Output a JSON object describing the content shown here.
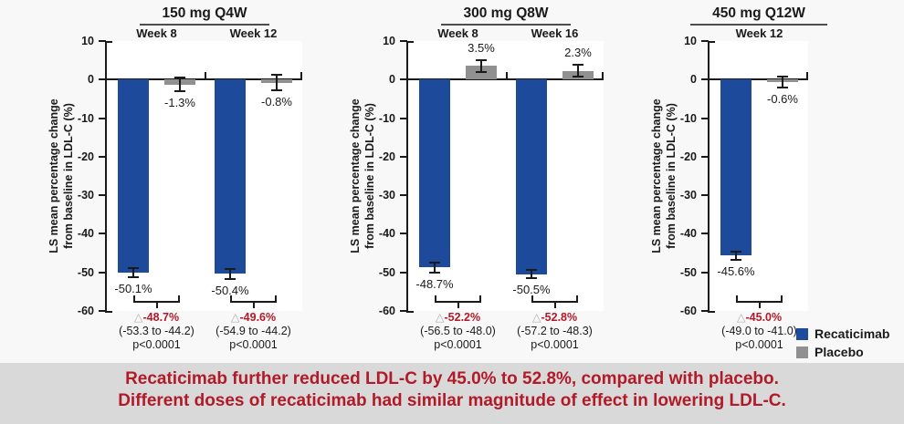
{
  "banner": {
    "line1": "Recaticimab further reduced LDL-C by 45.0% to 52.8%, compared with placebo.",
    "line2": "Different doses of recaticimab had similar magnitude of effect in lowering LDL-C."
  },
  "legend": {
    "position": "bottom-right",
    "items": [
      {
        "label": "Recaticimab",
        "color": "#1d4a9a"
      },
      {
        "label": "Placebo",
        "color": "#909090"
      }
    ]
  },
  "colors": {
    "recaticimab_bar": "#1d4a9a",
    "placebo_bar": "#909090",
    "axis": "#1a1a1a",
    "accent_red": "#b11a28",
    "triangle_gray": "#b0b0b0",
    "banner_bg": "#d9d9d9",
    "page_bg": "#f8f8f8"
  },
  "chart_data": {
    "type": "bar",
    "ylabel_line1": "LS mean percentage change",
    "ylabel_line2": "from baseline in LDL-C (%)",
    "ylim": [
      -60,
      10
    ],
    "ytick_step": 10,
    "grid": false,
    "delta_symbol": "△",
    "series_names": [
      "Recaticimab",
      "Placebo"
    ],
    "panels": [
      {
        "title": "150 mg Q4W",
        "groups": [
          {
            "week": "Week 8",
            "recaticimab": {
              "value": -50.1,
              "label": "-50.1%",
              "err": 1.5
            },
            "placebo": {
              "value": -1.3,
              "label": "-1.3%",
              "err": 2.0
            },
            "difference": {
              "delta": "-48.7%",
              "ci": "(-53.3 to -44.2)",
              "p": "p<0.0001"
            }
          },
          {
            "week": "Week 12",
            "recaticimab": {
              "value": -50.4,
              "label": "-50.4%",
              "err": 1.5
            },
            "placebo": {
              "value": -0.8,
              "label": "-0.8%",
              "err": 2.2
            },
            "difference": {
              "delta": "-49.6%",
              "ci": "(-54.9 to -44.2)",
              "p": "p<0.0001"
            }
          }
        ]
      },
      {
        "title": "300 mg Q8W",
        "groups": [
          {
            "week": "Week 8",
            "recaticimab": {
              "value": -48.7,
              "label": "-48.7%",
              "err": 1.5
            },
            "placebo": {
              "value": 3.5,
              "label": "3.5%",
              "err": 1.7
            },
            "difference": {
              "delta": "-52.2%",
              "ci": "(-56.5 to -48.0)",
              "p": "p<0.0001"
            }
          },
          {
            "week": "Week 16",
            "recaticimab": {
              "value": -50.5,
              "label": "-50.5%",
              "err": 1.3
            },
            "placebo": {
              "value": 2.3,
              "label": "2.3%",
              "err": 1.8
            },
            "difference": {
              "delta": "-52.8%",
              "ci": "(-57.2 to -48.3)",
              "p": "p<0.0001"
            }
          }
        ]
      },
      {
        "title": "450 mg Q12W",
        "groups": [
          {
            "week": "Week 12",
            "recaticimab": {
              "value": -45.6,
              "label": "-45.6%",
              "err": 1.3
            },
            "placebo": {
              "value": -0.6,
              "label": "-0.6%",
              "err": 1.6
            },
            "difference": {
              "delta": "-45.0%",
              "ci": "(-49.0 to -41.0)",
              "p": "p<0.0001"
            }
          }
        ]
      }
    ]
  }
}
